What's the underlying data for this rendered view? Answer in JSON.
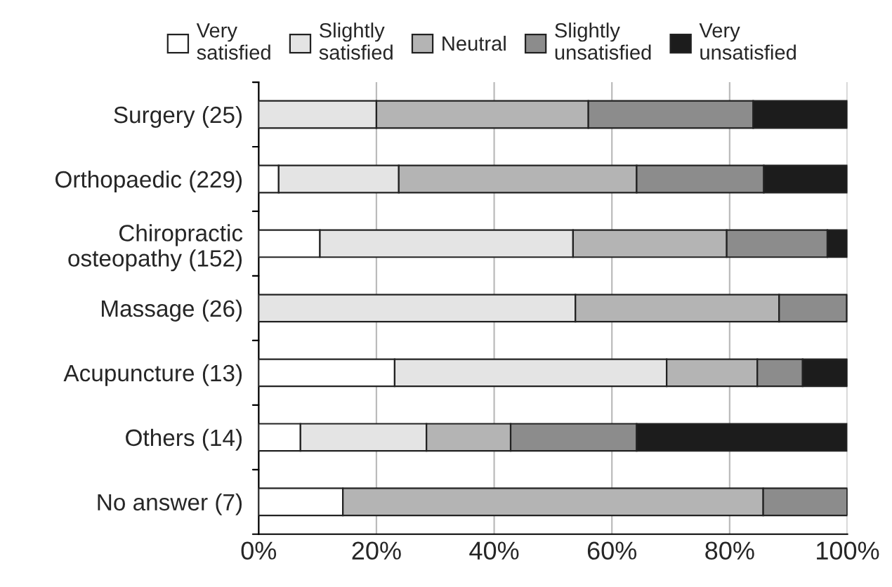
{
  "chart_data": {
    "type": "bar",
    "orientation": "horizontal",
    "stacked": true,
    "categories": [
      "Surgery (25)",
      "Orthopaedic (229)",
      "Chiropractic\nosteopathy (152)",
      "Massage (26)",
      "Acupuncture (13)",
      "Others (14)",
      "No answer (7)"
    ],
    "series": [
      {
        "name": "Very\nsatisfied",
        "color": "#ffffff",
        "values": [
          0,
          3.4,
          10.4,
          0,
          23.1,
          7.1,
          14.3
        ]
      },
      {
        "name": "Slightly\nsatisfied",
        "color": "#e4e4e4",
        "values": [
          20,
          20.4,
          43,
          53.8,
          46.2,
          21.4,
          0
        ]
      },
      {
        "name": "Neutral",
        "color": "#b4b4b4",
        "values": [
          36,
          40.4,
          26.1,
          34.6,
          15.4,
          14.3,
          71.4
        ]
      },
      {
        "name": "Slightly\nunsatisfied",
        "color": "#8c8c8c",
        "values": [
          28,
          21.6,
          17.1,
          11.5,
          7.7,
          21.4,
          14.3
        ]
      },
      {
        "name": "Very\nunsatisfied",
        "color": "#1c1c1c",
        "values": [
          16,
          14.2,
          3.4,
          0,
          7.7,
          35.7,
          0
        ]
      }
    ],
    "xlim": [
      0,
      100
    ],
    "xticks": [
      {
        "value": 0,
        "label": "0%"
      },
      {
        "value": 20,
        "label": "20%"
      },
      {
        "value": 40,
        "label": "40%"
      },
      {
        "value": 60,
        "label": "60%"
      },
      {
        "value": 80,
        "label": "80%"
      },
      {
        "value": 100,
        "label": "100%"
      }
    ],
    "grid": "x",
    "legend": "top"
  }
}
